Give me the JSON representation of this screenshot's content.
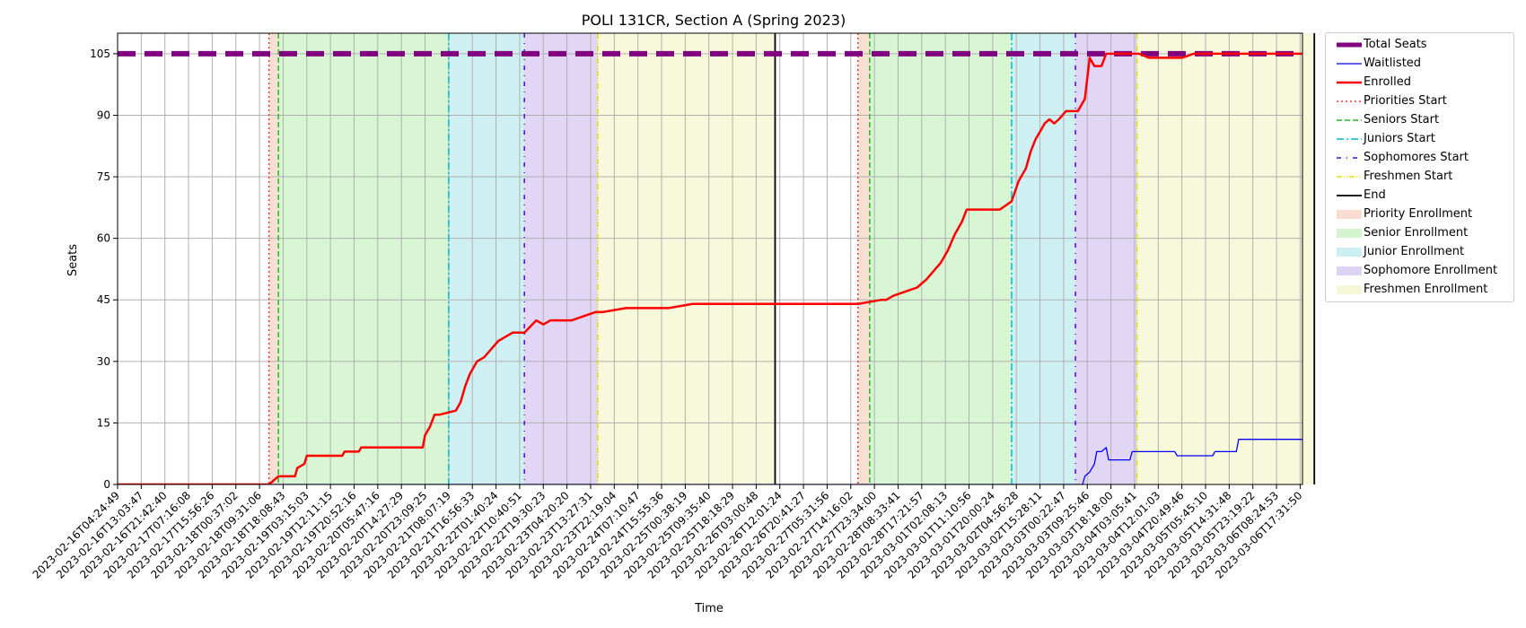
{
  "chart_data": {
    "type": "line",
    "title": "POLI 131CR, Section A (Spring 2023)",
    "xlabel": "Time",
    "ylabel": "Seats",
    "ylim": [
      0,
      110
    ],
    "yticks": [
      0,
      15,
      30,
      45,
      60,
      75,
      90,
      105
    ],
    "grid": true,
    "legend_position": "outside-right-top",
    "x_tick_labels": [
      "2023-02-16T04:24:49",
      "2023-02-16T13:03:47",
      "2023-02-16T21:42:40",
      "2023-02-17T07:16:08",
      "2023-02-17T15:56:26",
      "2023-02-18T00:37:02",
      "2023-02-18T09:31:06",
      "2023-02-18T18:08:43",
      "2023-02-19T03:15:03",
      "2023-02-19T12:11:15",
      "2023-02-19T20:52:16",
      "2023-02-20T05:47:16",
      "2023-02-20T14:27:29",
      "2023-02-20T23:09:25",
      "2023-02-21T08:07:19",
      "2023-02-21T16:56:33",
      "2023-02-22T01:40:24",
      "2023-02-22T10:40:51",
      "2023-02-22T19:30:23",
      "2023-02-23T04:20:20",
      "2023-02-23T13:27:31",
      "2023-02-23T22:19:04",
      "2023-02-24T07:10:47",
      "2023-02-24T15:55:36",
      "2023-02-25T00:38:19",
      "2023-02-25T09:35:40",
      "2023-02-25T18:18:29",
      "2023-02-26T03:00:48",
      "2023-02-26T12:01:24",
      "2023-02-26T20:41:27",
      "2023-02-27T05:31:56",
      "2023-02-27T14:16:02",
      "2023-02-27T23:34:00",
      "2023-02-28T08:33:41",
      "2023-02-28T17:21:57",
      "2023-03-01T02:08:13",
      "2023-03-01T11:10:56",
      "2023-03-01T20:00:24",
      "2023-03-02T04:56:28",
      "2023-03-02T15:28:11",
      "2023-03-03T00:22:47",
      "2023-03-03T09:25:46",
      "2023-03-03T18:18:00",
      "2023-03-04T03:05:41",
      "2023-03-04T12:01:03",
      "2023-03-04T20:49:46",
      "2023-03-05T05:45:10",
      "2023-03-05T14:31:48",
      "2023-03-05T23:19:22",
      "2023-03-06T08:24:53",
      "2023-03-06T17:31:50"
    ],
    "phases": [
      {
        "name": "Priority Enrollment",
        "start": 6.4,
        "end": 6.8,
        "color": "#f4c7b0"
      },
      {
        "name": "Senior Enrollment",
        "start": 6.8,
        "end": 14.0,
        "color": "#b8ecb0"
      },
      {
        "name": "Junior Enrollment",
        "start": 14.0,
        "end": 17.2,
        "color": "#a8e4ea"
      },
      {
        "name": "Sophomore Enrollment",
        "start": 17.2,
        "end": 20.3,
        "color": "#c8b4ec"
      },
      {
        "name": "Freshmen Enrollment",
        "start": 20.3,
        "end": 27.8,
        "color": "#f2f2bd"
      },
      {
        "name": "Priority Enrollment",
        "start": 31.3,
        "end": 31.8,
        "color": "#f4c7b0"
      },
      {
        "name": "Senior Enrollment",
        "start": 31.8,
        "end": 37.8,
        "color": "#b8ecb0"
      },
      {
        "name": "Junior Enrollment",
        "start": 37.8,
        "end": 40.5,
        "color": "#a8e4ea"
      },
      {
        "name": "Sophomore Enrollment",
        "start": 40.5,
        "end": 43.1,
        "color": "#c8b4ec"
      },
      {
        "name": "Freshmen Enrollment",
        "start": 43.1,
        "end": 50.6,
        "color": "#f2f2bd"
      }
    ],
    "markers": [
      {
        "name": "Priorities Start",
        "x": [
          6.4,
          31.3
        ],
        "color": "#ff3030",
        "dash": "2,3"
      },
      {
        "name": "Seniors Start",
        "x": [
          6.8,
          31.8
        ],
        "color": "#22bb22",
        "dash": "6,3"
      },
      {
        "name": "Juniors Start",
        "x": [
          14.0,
          37.8
        ],
        "color": "#00bbcc",
        "dash": "8,3,2,3"
      },
      {
        "name": "Sophomores Start",
        "x": [
          17.2,
          40.5
        ],
        "color": "#5500ee",
        "dash": "5,6,1,6"
      },
      {
        "name": "Freshmen Start",
        "x": [
          20.3,
          43.1
        ],
        "color": "#dddd00",
        "dash": "6,2,1,2,1,2"
      },
      {
        "name": "End",
        "x": [
          27.8,
          50.6
        ],
        "color": "#000000",
        "dash": ""
      }
    ],
    "series": [
      {
        "name": "Total Seats",
        "color": "#800080",
        "width": 6,
        "dash": "20,10",
        "x": [
          0,
          52
        ],
        "y": [
          105,
          105
        ]
      },
      {
        "name": "Waitlisted",
        "color": "#0000ee",
        "width": 1.3,
        "dash": "",
        "x": [
          0,
          40.8,
          40.9,
          41.1,
          41.3,
          41.4,
          41.6,
          41.8,
          41.9,
          42.8,
          42.9,
          44.7,
          44.8,
          46.3,
          46.4,
          47.3,
          47.4,
          50.6,
          50.7,
          51.9,
          52.2,
          53.5
        ],
        "y": [
          0,
          0,
          2,
          3,
          5,
          8,
          8,
          9,
          6,
          6,
          8,
          8,
          7,
          7,
          8,
          8,
          11,
          11,
          12,
          12,
          11,
          11
        ]
      },
      {
        "name": "Enrolled",
        "color": "#ff0000",
        "width": 2.5,
        "dash": "",
        "x": [
          0,
          6.4,
          6.6,
          6.8,
          7.5,
          7.6,
          7.9,
          8.0,
          9.5,
          9.6,
          10.2,
          10.3,
          12.9,
          13.0,
          13.2,
          13.4,
          13.6,
          14.3,
          14.5,
          14.7,
          14.9,
          15.2,
          15.5,
          15.8,
          16.1,
          16.4,
          16.7,
          17.2,
          17.7,
          18.0,
          18.3,
          18.6,
          19.2,
          20.2,
          20.5,
          21.5,
          22.5,
          23.3,
          24.3,
          31.3,
          32.3,
          32.5,
          32.8,
          33.3,
          33.8,
          34.2,
          34.5,
          34.8,
          35.1,
          35.4,
          35.7,
          35.9,
          36.6,
          37.3,
          37.8,
          38.1,
          38.4,
          38.6,
          38.8,
          39.0,
          39.2,
          39.4,
          39.6,
          39.8,
          40.1,
          40.6,
          40.9,
          41.1,
          41.2,
          41.3,
          41.6,
          41.8,
          42.5,
          43.2,
          43.6,
          45.0,
          45.5,
          46.3,
          51.3,
          52.7,
          52.8,
          53.5
        ],
        "y": [
          0,
          0,
          1,
          2,
          2,
          4,
          5,
          7,
          7,
          8,
          8,
          9,
          9,
          12,
          14,
          17,
          17,
          18,
          20,
          24,
          27,
          30,
          31,
          33,
          35,
          36,
          37,
          37,
          40,
          39,
          40,
          40,
          40,
          42,
          42,
          43,
          43,
          43,
          44,
          44,
          45,
          45,
          46,
          47,
          48,
          50,
          52,
          54,
          57,
          61,
          64,
          67,
          67,
          67,
          69,
          74,
          77,
          81,
          84,
          86,
          88,
          89,
          88,
          89,
          91,
          91,
          94,
          104,
          103,
          102,
          102,
          105,
          105,
          105,
          104,
          104,
          105,
          105,
          105,
          105,
          104,
          104
        ]
      }
    ],
    "legend": [
      {
        "label": "Total Seats",
        "kind": "line",
        "color": "#800080",
        "width": 5,
        "dash": ""
      },
      {
        "label": "Waitlisted",
        "kind": "line",
        "color": "#0000ee",
        "width": 1.3,
        "dash": ""
      },
      {
        "label": "Enrolled",
        "kind": "line",
        "color": "#ff0000",
        "width": 2.5,
        "dash": ""
      },
      {
        "label": "Priorities Start",
        "kind": "line",
        "color": "#ff3030",
        "width": 1.5,
        "dash": "2,3"
      },
      {
        "label": "Seniors Start",
        "kind": "line",
        "color": "#22bb22",
        "width": 1.5,
        "dash": "6,3"
      },
      {
        "label": "Juniors Start",
        "kind": "line",
        "color": "#00bbcc",
        "width": 1.5,
        "dash": "8,3,2,3"
      },
      {
        "label": "Sophomores Start",
        "kind": "line",
        "color": "#5500ee",
        "width": 1.5,
        "dash": "5,6,1,6"
      },
      {
        "label": "Freshmen Start",
        "kind": "line",
        "color": "#dddd00",
        "width": 1.5,
        "dash": "6,2,1,2,1,2"
      },
      {
        "label": "End",
        "kind": "line",
        "color": "#000000",
        "width": 1.8,
        "dash": ""
      },
      {
        "label": "Priority Enrollment",
        "kind": "patch",
        "color": "#f4c7b0"
      },
      {
        "label": "Senior Enrollment",
        "kind": "patch",
        "color": "#b8ecb0"
      },
      {
        "label": "Junior Enrollment",
        "kind": "patch",
        "color": "#a8e4ea"
      },
      {
        "label": "Sophomore Enrollment",
        "kind": "patch",
        "color": "#c8b4ec"
      },
      {
        "label": "Freshmen Enrollment",
        "kind": "patch",
        "color": "#f2f2bd"
      }
    ]
  }
}
